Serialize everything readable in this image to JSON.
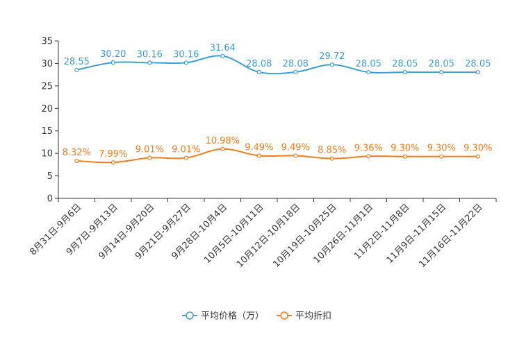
{
  "chart_data": {
    "type": "line",
    "title": "",
    "xlabel": "",
    "ylabel": "",
    "ylim": [
      0,
      35
    ],
    "yticks": [
      0,
      5,
      10,
      15,
      20,
      25,
      30,
      35
    ],
    "categories": [
      "8月31日-9月6日",
      "9月7日-9月13日",
      "9月14日-9月20日",
      "9月21日-9月27日",
      "9月28日-10月4日",
      "10月5日-10月11日",
      "10月12日-10月18日",
      "10月19日-10月25日",
      "10月26日-11月1日",
      "11月2日-11月8日",
      "11月9日-11月15日",
      "11月16日-11月22日"
    ],
    "series": [
      {
        "name": "平均价格（万）",
        "color": "#3a9fd1",
        "values": [
          28.55,
          30.2,
          30.16,
          30.16,
          31.64,
          28.08,
          28.08,
          29.72,
          28.05,
          28.05,
          28.05,
          28.05
        ],
        "labels": [
          "28.55",
          "30.20",
          "30.16",
          "30.16",
          "31.64",
          "28.08",
          "28.08",
          "29.72",
          "28.05",
          "28.05",
          "28.05",
          "28.05"
        ]
      },
      {
        "name": "平均折扣",
        "color": "#f07d1a",
        "values": [
          8.32,
          7.99,
          9.01,
          9.01,
          10.98,
          9.49,
          9.49,
          8.85,
          9.36,
          9.3,
          9.3,
          9.3
        ],
        "labels": [
          "8.32%",
          "7.99%",
          "9.01%",
          "9.01%",
          "10.98%",
          "9.49%",
          "9.49%",
          "8.85%",
          "9.36%",
          "9.30%",
          "9.30%",
          "9.30%"
        ]
      }
    ],
    "legend_position": "bottom-center",
    "grid": false
  }
}
